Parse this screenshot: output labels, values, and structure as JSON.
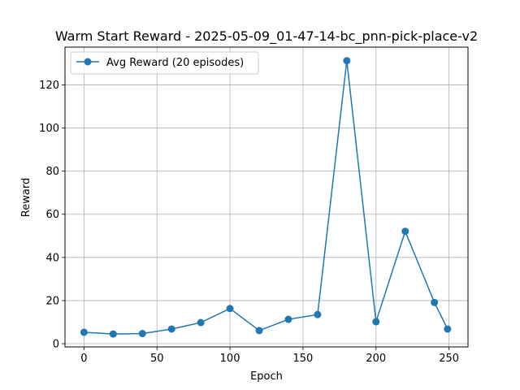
{
  "chart_data": {
    "type": "line",
    "title": "Warm Start Reward - 2025-05-09_01-47-14-bc_pnn-pick-place-v2",
    "xlabel": "Epoch",
    "ylabel": "Reward",
    "xlim": [
      -13,
      263
    ],
    "ylim": [
      -1.5,
      137.5
    ],
    "xticks": [
      0,
      50,
      100,
      150,
      200,
      250
    ],
    "yticks": [
      0,
      20,
      40,
      60,
      80,
      100,
      120
    ],
    "grid": true,
    "legend_position": "upper-left",
    "series": [
      {
        "name": "Avg Reward (20 episodes)",
        "color": "#1f77b4",
        "marker": "circle",
        "x": [
          0,
          20,
          40,
          60,
          80,
          100,
          120,
          140,
          160,
          180,
          200,
          220,
          240,
          249
        ],
        "y": [
          5.3,
          4.5,
          4.7,
          6.8,
          9.8,
          16.3,
          6.1,
          11.3,
          13.5,
          131.2,
          10.2,
          52.1,
          19.1,
          6.8
        ]
      }
    ]
  }
}
